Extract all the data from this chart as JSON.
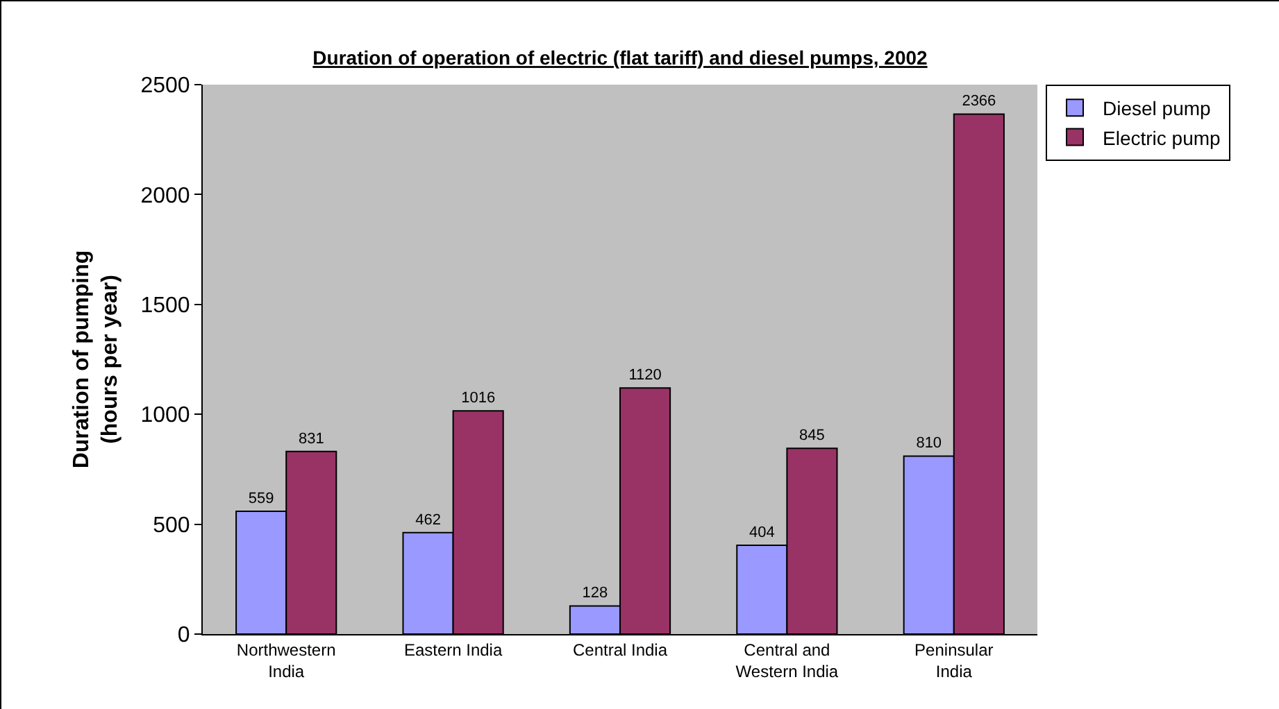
{
  "chart_data": {
    "type": "bar",
    "title": "Duration of operation of electric (flat tariff) and diesel pumps, 2002",
    "ylabel": "Duration of pumping\n(hours per year)",
    "categories": [
      "Northwestern India",
      "Eastern India",
      "Central India",
      "Central and Western India",
      "Peninsular India"
    ],
    "series": [
      {
        "name": "Diesel pump",
        "color": "#9999ff",
        "values": [
          559,
          462,
          128,
          404,
          810
        ]
      },
      {
        "name": "Electric pump",
        "color": "#993366",
        "values": [
          831,
          1016,
          1120,
          845,
          2366
        ]
      }
    ],
    "ylim": [
      0,
      2500
    ],
    "yticks": [
      0,
      500,
      1000,
      1500,
      2000,
      2500
    ],
    "grid": false,
    "legend": "top right",
    "data_labels": true
  }
}
